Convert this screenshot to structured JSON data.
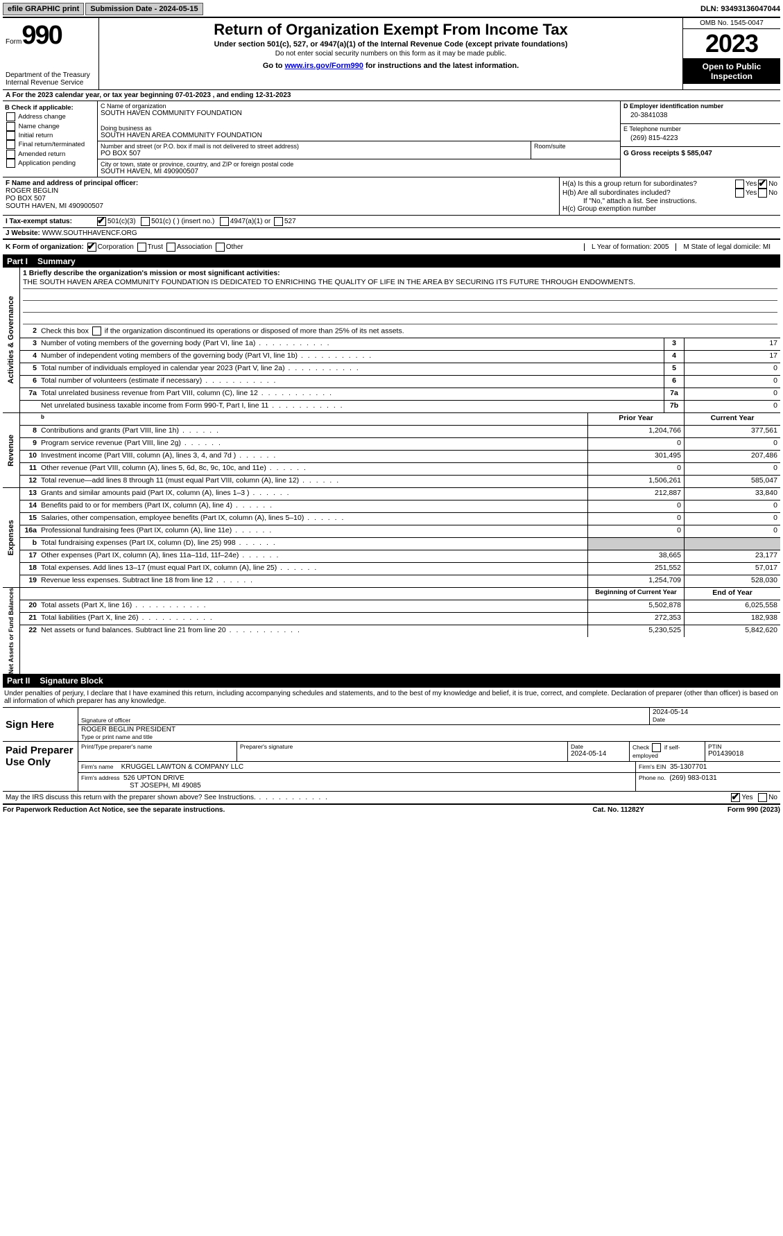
{
  "topbar": {
    "efile_label": "efile GRAPHIC print",
    "submission_label": "Submission Date - 2024-05-15",
    "dln_label": "DLN: 93493136047044"
  },
  "header": {
    "form_label": "Form",
    "form_number": "990",
    "dept": "Department of the Treasury",
    "irs": "Internal Revenue Service",
    "title": "Return of Organization Exempt From Income Tax",
    "subtitle": "Under section 501(c), 527, or 4947(a)(1) of the Internal Revenue Code (except private foundations)",
    "note1": "Do not enter social security numbers on this form as it may be made public.",
    "note2_pre": "Go to ",
    "note2_link": "www.irs.gov/Form990",
    "note2_post": " for instructions and the latest information.",
    "omb": "OMB No. 1545-0047",
    "year": "2023",
    "inspection": "Open to Public Inspection"
  },
  "row_a": "A For the 2023 calendar year, or tax year beginning 07-01-2023    , and ending 12-31-2023",
  "col_b": {
    "title": "B Check if applicable:",
    "items": [
      "Address change",
      "Name change",
      "Initial return",
      "Final return/terminated",
      "Amended return",
      "Application pending"
    ]
  },
  "col_c": {
    "name_label": "C Name of organization",
    "name": "SOUTH HAVEN COMMUNITY FOUNDATION",
    "dba_label": "Doing business as",
    "dba": "SOUTH HAVEN AREA COMMUNITY FOUNDATION",
    "addr_label": "Number and street (or P.O. box if mail is not delivered to street address)",
    "addr": "PO BOX 507",
    "room_label": "Room/suite",
    "city_label": "City or town, state or province, country, and ZIP or foreign postal code",
    "city": "SOUTH HAVEN, MI  490900507"
  },
  "col_de": {
    "d_label": "D Employer identification number",
    "d_val": "20-3841038",
    "e_label": "E Telephone number",
    "e_val": "(269) 815-4223",
    "g_label": "G Gross receipts $ 585,047"
  },
  "fh": {
    "f_label": "F  Name and address of principal officer:",
    "f_name": "ROGER BEGLIN",
    "f_addr1": "PO BOX 507",
    "f_addr2": "SOUTH HAVEN, MI  490900507",
    "ha": "H(a)  Is this a group return for subordinates?",
    "hb": "H(b)  Are all subordinates included?",
    "hb_note": "If \"No,\" attach a list. See instructions.",
    "hc": "H(c)  Group exemption number ",
    "yes": "Yes",
    "no": "No"
  },
  "tax_status": {
    "label": "I   Tax-exempt status:",
    "o1": "501(c)(3)",
    "o2": "501(c) (  ) (insert no.)",
    "o3": "4947(a)(1) or",
    "o4": "527"
  },
  "website": {
    "label": "J   Website: ",
    "val": "WWW.SOUTHHAVENCF.ORG"
  },
  "k_row": {
    "k_label": "K Form of organization:",
    "k_opts": [
      "Corporation",
      "Trust",
      "Association",
      "Other"
    ],
    "l_label": "L Year of formation: 2005",
    "m_label": "M State of legal domicile: MI"
  },
  "part1": {
    "pt": "Part I",
    "title": "Summary"
  },
  "mission": {
    "q": "1   Briefly describe the organization's mission or most significant activities:",
    "text": "THE SOUTH HAVEN AREA COMMUNITY FOUNDATION IS DEDICATED TO ENRICHING THE QUALITY OF LIFE IN THE AREA BY SECURING ITS FUTURE THROUGH ENDOWMENTS."
  },
  "gov": {
    "l2": "Check this box       if the organization discontinued its operations or disposed of more than 25% of its net assets.",
    "rows": [
      {
        "n": "3",
        "t": "Number of voting members of the governing body (Part VI, line 1a)",
        "bn": "3",
        "v": "17"
      },
      {
        "n": "4",
        "t": "Number of independent voting members of the governing body (Part VI, line 1b)",
        "bn": "4",
        "v": "17"
      },
      {
        "n": "5",
        "t": "Total number of individuals employed in calendar year 2023 (Part V, line 2a)",
        "bn": "5",
        "v": "0"
      },
      {
        "n": "6",
        "t": "Total number of volunteers (estimate if necessary)",
        "bn": "6",
        "v": "0"
      },
      {
        "n": "7a",
        "t": "Total unrelated business revenue from Part VIII, column (C), line 12",
        "bn": "7a",
        "v": "0"
      },
      {
        "n": "",
        "t": "Net unrelated business taxable income from Form 990-T, Part I, line 11",
        "bn": "7b",
        "v": "0"
      }
    ]
  },
  "rev": {
    "h1": "Prior Year",
    "h2": "Current Year",
    "rows": [
      {
        "n": "8",
        "t": "Contributions and grants (Part VIII, line 1h)",
        "v1": "1,204,766",
        "v2": "377,561"
      },
      {
        "n": "9",
        "t": "Program service revenue (Part VIII, line 2g)",
        "v1": "0",
        "v2": "0"
      },
      {
        "n": "10",
        "t": "Investment income (Part VIII, column (A), lines 3, 4, and 7d )",
        "v1": "301,495",
        "v2": "207,486"
      },
      {
        "n": "11",
        "t": "Other revenue (Part VIII, column (A), lines 5, 6d, 8c, 9c, 10c, and 11e)",
        "v1": "0",
        "v2": "0"
      },
      {
        "n": "12",
        "t": "Total revenue—add lines 8 through 11 (must equal Part VIII, column (A), line 12)",
        "v1": "1,506,261",
        "v2": "585,047"
      }
    ]
  },
  "exp": {
    "rows": [
      {
        "n": "13",
        "t": "Grants and similar amounts paid (Part IX, column (A), lines 1–3 )",
        "v1": "212,887",
        "v2": "33,840"
      },
      {
        "n": "14",
        "t": "Benefits paid to or for members (Part IX, column (A), line 4)",
        "v1": "0",
        "v2": "0"
      },
      {
        "n": "15",
        "t": "Salaries, other compensation, employee benefits (Part IX, column (A), lines 5–10)",
        "v1": "0",
        "v2": "0"
      },
      {
        "n": "16a",
        "t": "Professional fundraising fees (Part IX, column (A), line 11e)",
        "v1": "0",
        "v2": "0"
      },
      {
        "n": "b",
        "t": "Total fundraising expenses (Part IX, column (D), line 25) 998",
        "v1": "",
        "v2": "",
        "grey": true
      },
      {
        "n": "17",
        "t": "Other expenses (Part IX, column (A), lines 11a–11d, 11f–24e)",
        "v1": "38,665",
        "v2": "23,177"
      },
      {
        "n": "18",
        "t": "Total expenses. Add lines 13–17 (must equal Part IX, column (A), line 25)",
        "v1": "251,552",
        "v2": "57,017"
      },
      {
        "n": "19",
        "t": "Revenue less expenses. Subtract line 18 from line 12",
        "v1": "1,254,709",
        "v2": "528,030"
      }
    ]
  },
  "net": {
    "h1": "Beginning of Current Year",
    "h2": "End of Year",
    "rows": [
      {
        "n": "20",
        "t": "Total assets (Part X, line 16)",
        "v1": "5,502,878",
        "v2": "6,025,558"
      },
      {
        "n": "21",
        "t": "Total liabilities (Part X, line 26)",
        "v1": "272,353",
        "v2": "182,938"
      },
      {
        "n": "22",
        "t": "Net assets or fund balances. Subtract line 21 from line 20",
        "v1": "5,230,525",
        "v2": "5,842,620"
      }
    ]
  },
  "part2": {
    "pt": "Part II",
    "title": "Signature Block"
  },
  "perjury": "Under penalties of perjury, I declare that I have examined this return, including accompanying schedules and statements, and to the best of my knowledge and belief, it is true, correct, and complete. Declaration of preparer (other than officer) is based on all information of which preparer has any knowledge.",
  "sign": {
    "left": "Sign Here",
    "sig_label": "Signature of officer",
    "date_label": "Date",
    "date": "2024-05-14",
    "name": "ROGER BEGLIN  PRESIDENT",
    "name_label": "Type or print name and title"
  },
  "prep": {
    "left": "Paid Preparer Use Only",
    "h_name": "Print/Type preparer's name",
    "h_sig": "Preparer's signature",
    "h_date": "Date",
    "date": "2024-05-14",
    "h_check": "Check       if self-employed",
    "h_ptin": "PTIN",
    "ptin": "P01439018",
    "firm_name_l": "Firm's name",
    "firm_name": "KRUGGEL LAWTON & COMPANY LLC",
    "firm_ein_l": "Firm's EIN",
    "firm_ein": "35-1307701",
    "firm_addr_l": "Firm's address",
    "firm_addr1": "526 UPTON DRIVE",
    "firm_addr2": "ST JOSEPH, MI  49085",
    "phone_l": "Phone no.",
    "phone": "(269) 983-0131"
  },
  "discuss": "May the IRS discuss this return with the preparer shown above? See Instructions.",
  "footer": {
    "l": "For Paperwork Reduction Act Notice, see the separate instructions.",
    "m": "Cat. No. 11282Y",
    "r": "Form 990 (2023)"
  },
  "vtabs": {
    "gov": "Activities & Governance",
    "rev": "Revenue",
    "exp": "Expenses",
    "net": "Net Assets or Fund Balances"
  }
}
